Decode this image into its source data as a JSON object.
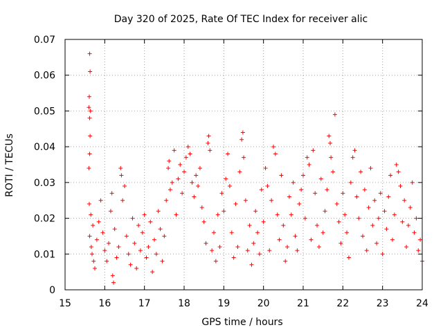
{
  "chart_data": {
    "type": "scatter",
    "title": "Day 320 of 2025, Rate Of TEC Index for receiver alic",
    "xlabel": "GPS time / hours",
    "ylabel": "ROTI / TECUs",
    "xlim": [
      15,
      24
    ],
    "ylim": [
      0,
      0.07
    ],
    "grid": true,
    "x_ticks": [
      "15",
      "16",
      "17",
      "18",
      "19",
      "20",
      "21",
      "22",
      "23",
      "24"
    ],
    "y_ticks": [
      "0",
      "0.01",
      "0.02",
      "0.03",
      "0.04",
      "0.05",
      "0.06",
      "0.07"
    ],
    "marker": "+",
    "color": "#ff0000",
    "series": [
      {
        "name": "ROTI",
        "points": [
          [
            15.62,
            0.066
          ],
          [
            15.63,
            0.061
          ],
          [
            15.61,
            0.054
          ],
          [
            15.6,
            0.051
          ],
          [
            15.64,
            0.05
          ],
          [
            15.62,
            0.048
          ],
          [
            15.63,
            0.043
          ],
          [
            15.62,
            0.038
          ],
          [
            15.6,
            0.034
          ],
          [
            15.61,
            0.024
          ],
          [
            15.65,
            0.021
          ],
          [
            15.7,
            0.018
          ],
          [
            15.62,
            0.015
          ],
          [
            15.66,
            0.012
          ],
          [
            15.68,
            0.01
          ],
          [
            15.72,
            0.008
          ],
          [
            15.75,
            0.006
          ],
          [
            15.8,
            0.014
          ],
          [
            15.85,
            0.019
          ],
          [
            15.9,
            0.025
          ],
          [
            15.95,
            0.016
          ],
          [
            16.0,
            0.011
          ],
          [
            16.05,
            0.008
          ],
          [
            16.1,
            0.013
          ],
          [
            16.15,
            0.022
          ],
          [
            16.18,
            0.027
          ],
          [
            16.2,
            0.004
          ],
          [
            16.22,
            0.002
          ],
          [
            16.25,
            0.017
          ],
          [
            16.3,
            0.009
          ],
          [
            16.35,
            0.012
          ],
          [
            16.4,
            0.034
          ],
          [
            16.42,
            0.032
          ],
          [
            16.45,
            0.025
          ],
          [
            16.5,
            0.029
          ],
          [
            16.55,
            0.015
          ],
          [
            16.6,
            0.01
          ],
          [
            16.65,
            0.007
          ],
          [
            16.7,
            0.02
          ],
          [
            16.75,
            0.013
          ],
          [
            16.8,
            0.006
          ],
          [
            16.85,
            0.018
          ],
          [
            16.9,
            0.011
          ],
          [
            16.95,
            0.016
          ],
          [
            17.0,
            0.021
          ],
          [
            17.05,
            0.009
          ],
          [
            17.1,
            0.012
          ],
          [
            17.15,
            0.019
          ],
          [
            17.2,
            0.005
          ],
          [
            17.25,
            0.014
          ],
          [
            17.3,
            0.01
          ],
          [
            17.35,
            0.022
          ],
          [
            17.4,
            0.017
          ],
          [
            17.45,
            0.008
          ],
          [
            17.5,
            0.015
          ],
          [
            17.55,
            0.025
          ],
          [
            17.6,
            0.034
          ],
          [
            17.62,
            0.036
          ],
          [
            17.65,
            0.028
          ],
          [
            17.7,
            0.03
          ],
          [
            17.75,
            0.039
          ],
          [
            17.8,
            0.021
          ],
          [
            17.85,
            0.031
          ],
          [
            17.9,
            0.035
          ],
          [
            17.95,
            0.027
          ],
          [
            18.0,
            0.033
          ],
          [
            18.05,
            0.037
          ],
          [
            18.1,
            0.04
          ],
          [
            18.15,
            0.038
          ],
          [
            18.2,
            0.03
          ],
          [
            18.25,
            0.026
          ],
          [
            18.3,
            0.032
          ],
          [
            18.35,
            0.029
          ],
          [
            18.4,
            0.034
          ],
          [
            18.45,
            0.023
          ],
          [
            18.5,
            0.019
          ],
          [
            18.55,
            0.013
          ],
          [
            18.6,
            0.041
          ],
          [
            18.62,
            0.043
          ],
          [
            18.65,
            0.039
          ],
          [
            18.7,
            0.011
          ],
          [
            18.75,
            0.016
          ],
          [
            18.8,
            0.008
          ],
          [
            18.85,
            0.021
          ],
          [
            18.9,
            0.012
          ],
          [
            18.95,
            0.027
          ],
          [
            19.0,
            0.022
          ],
          [
            19.05,
            0.031
          ],
          [
            19.1,
            0.038
          ],
          [
            19.15,
            0.029
          ],
          [
            19.2,
            0.016
          ],
          [
            19.25,
            0.009
          ],
          [
            19.3,
            0.024
          ],
          [
            19.35,
            0.012
          ],
          [
            19.4,
            0.033
          ],
          [
            19.45,
            0.042
          ],
          [
            19.48,
            0.044
          ],
          [
            19.5,
            0.037
          ],
          [
            19.55,
            0.025
          ],
          [
            19.6,
            0.011
          ],
          [
            19.65,
            0.018
          ],
          [
            19.7,
            0.007
          ],
          [
            19.75,
            0.013
          ],
          [
            19.8,
            0.022
          ],
          [
            19.85,
            0.016
          ],
          [
            19.9,
            0.01
          ],
          [
            19.95,
            0.028
          ],
          [
            20.0,
            0.019
          ],
          [
            20.05,
            0.034
          ],
          [
            20.1,
            0.029
          ],
          [
            20.15,
            0.011
          ],
          [
            20.2,
            0.025
          ],
          [
            20.25,
            0.04
          ],
          [
            20.3,
            0.038
          ],
          [
            20.35,
            0.021
          ],
          [
            20.4,
            0.014
          ],
          [
            20.45,
            0.032
          ],
          [
            20.5,
            0.018
          ],
          [
            20.55,
            0.008
          ],
          [
            20.6,
            0.012
          ],
          [
            20.65,
            0.026
          ],
          [
            20.7,
            0.021
          ],
          [
            20.75,
            0.03
          ],
          [
            20.8,
            0.015
          ],
          [
            20.85,
            0.011
          ],
          [
            20.9,
            0.024
          ],
          [
            20.95,
            0.028
          ],
          [
            21.0,
            0.032
          ],
          [
            21.05,
            0.02
          ],
          [
            21.1,
            0.037
          ],
          [
            21.15,
            0.035
          ],
          [
            21.2,
            0.014
          ],
          [
            21.25,
            0.039
          ],
          [
            21.3,
            0.027
          ],
          [
            21.35,
            0.018
          ],
          [
            21.4,
            0.012
          ],
          [
            21.45,
            0.031
          ],
          [
            21.5,
            0.016
          ],
          [
            21.55,
            0.022
          ],
          [
            21.6,
            0.028
          ],
          [
            21.65,
            0.043
          ],
          [
            21.68,
            0.041
          ],
          [
            21.7,
            0.037
          ],
          [
            21.75,
            0.033
          ],
          [
            21.8,
            0.049
          ],
          [
            21.85,
            0.024
          ],
          [
            21.9,
            0.019
          ],
          [
            21.95,
            0.013
          ],
          [
            22.0,
            0.027
          ],
          [
            22.05,
            0.021
          ],
          [
            22.1,
            0.016
          ],
          [
            22.15,
            0.009
          ],
          [
            22.2,
            0.03
          ],
          [
            22.25,
            0.037
          ],
          [
            22.3,
            0.039
          ],
          [
            22.35,
            0.026
          ],
          [
            22.4,
            0.02
          ],
          [
            22.45,
            0.033
          ],
          [
            22.5,
            0.015
          ],
          [
            22.55,
            0.028
          ],
          [
            22.6,
            0.011
          ],
          [
            22.65,
            0.023
          ],
          [
            22.7,
            0.034
          ],
          [
            22.75,
            0.018
          ],
          [
            22.8,
            0.025
          ],
          [
            22.85,
            0.013
          ],
          [
            22.9,
            0.02
          ],
          [
            22.95,
            0.027
          ],
          [
            23.0,
            0.01
          ],
          [
            23.05,
            0.022
          ],
          [
            23.1,
            0.017
          ],
          [
            23.15,
            0.026
          ],
          [
            23.2,
            0.032
          ],
          [
            23.25,
            0.014
          ],
          [
            23.3,
            0.021
          ],
          [
            23.35,
            0.035
          ],
          [
            23.4,
            0.033
          ],
          [
            23.45,
            0.029
          ],
          [
            23.5,
            0.019
          ],
          [
            23.55,
            0.025
          ],
          [
            23.6,
            0.012
          ],
          [
            23.65,
            0.018
          ],
          [
            23.7,
            0.023
          ],
          [
            23.75,
            0.03
          ],
          [
            23.8,
            0.016
          ],
          [
            23.85,
            0.02
          ],
          [
            23.9,
            0.011
          ],
          [
            23.95,
            0.014
          ],
          [
            24.0,
            0.008
          ]
        ]
      }
    ]
  }
}
